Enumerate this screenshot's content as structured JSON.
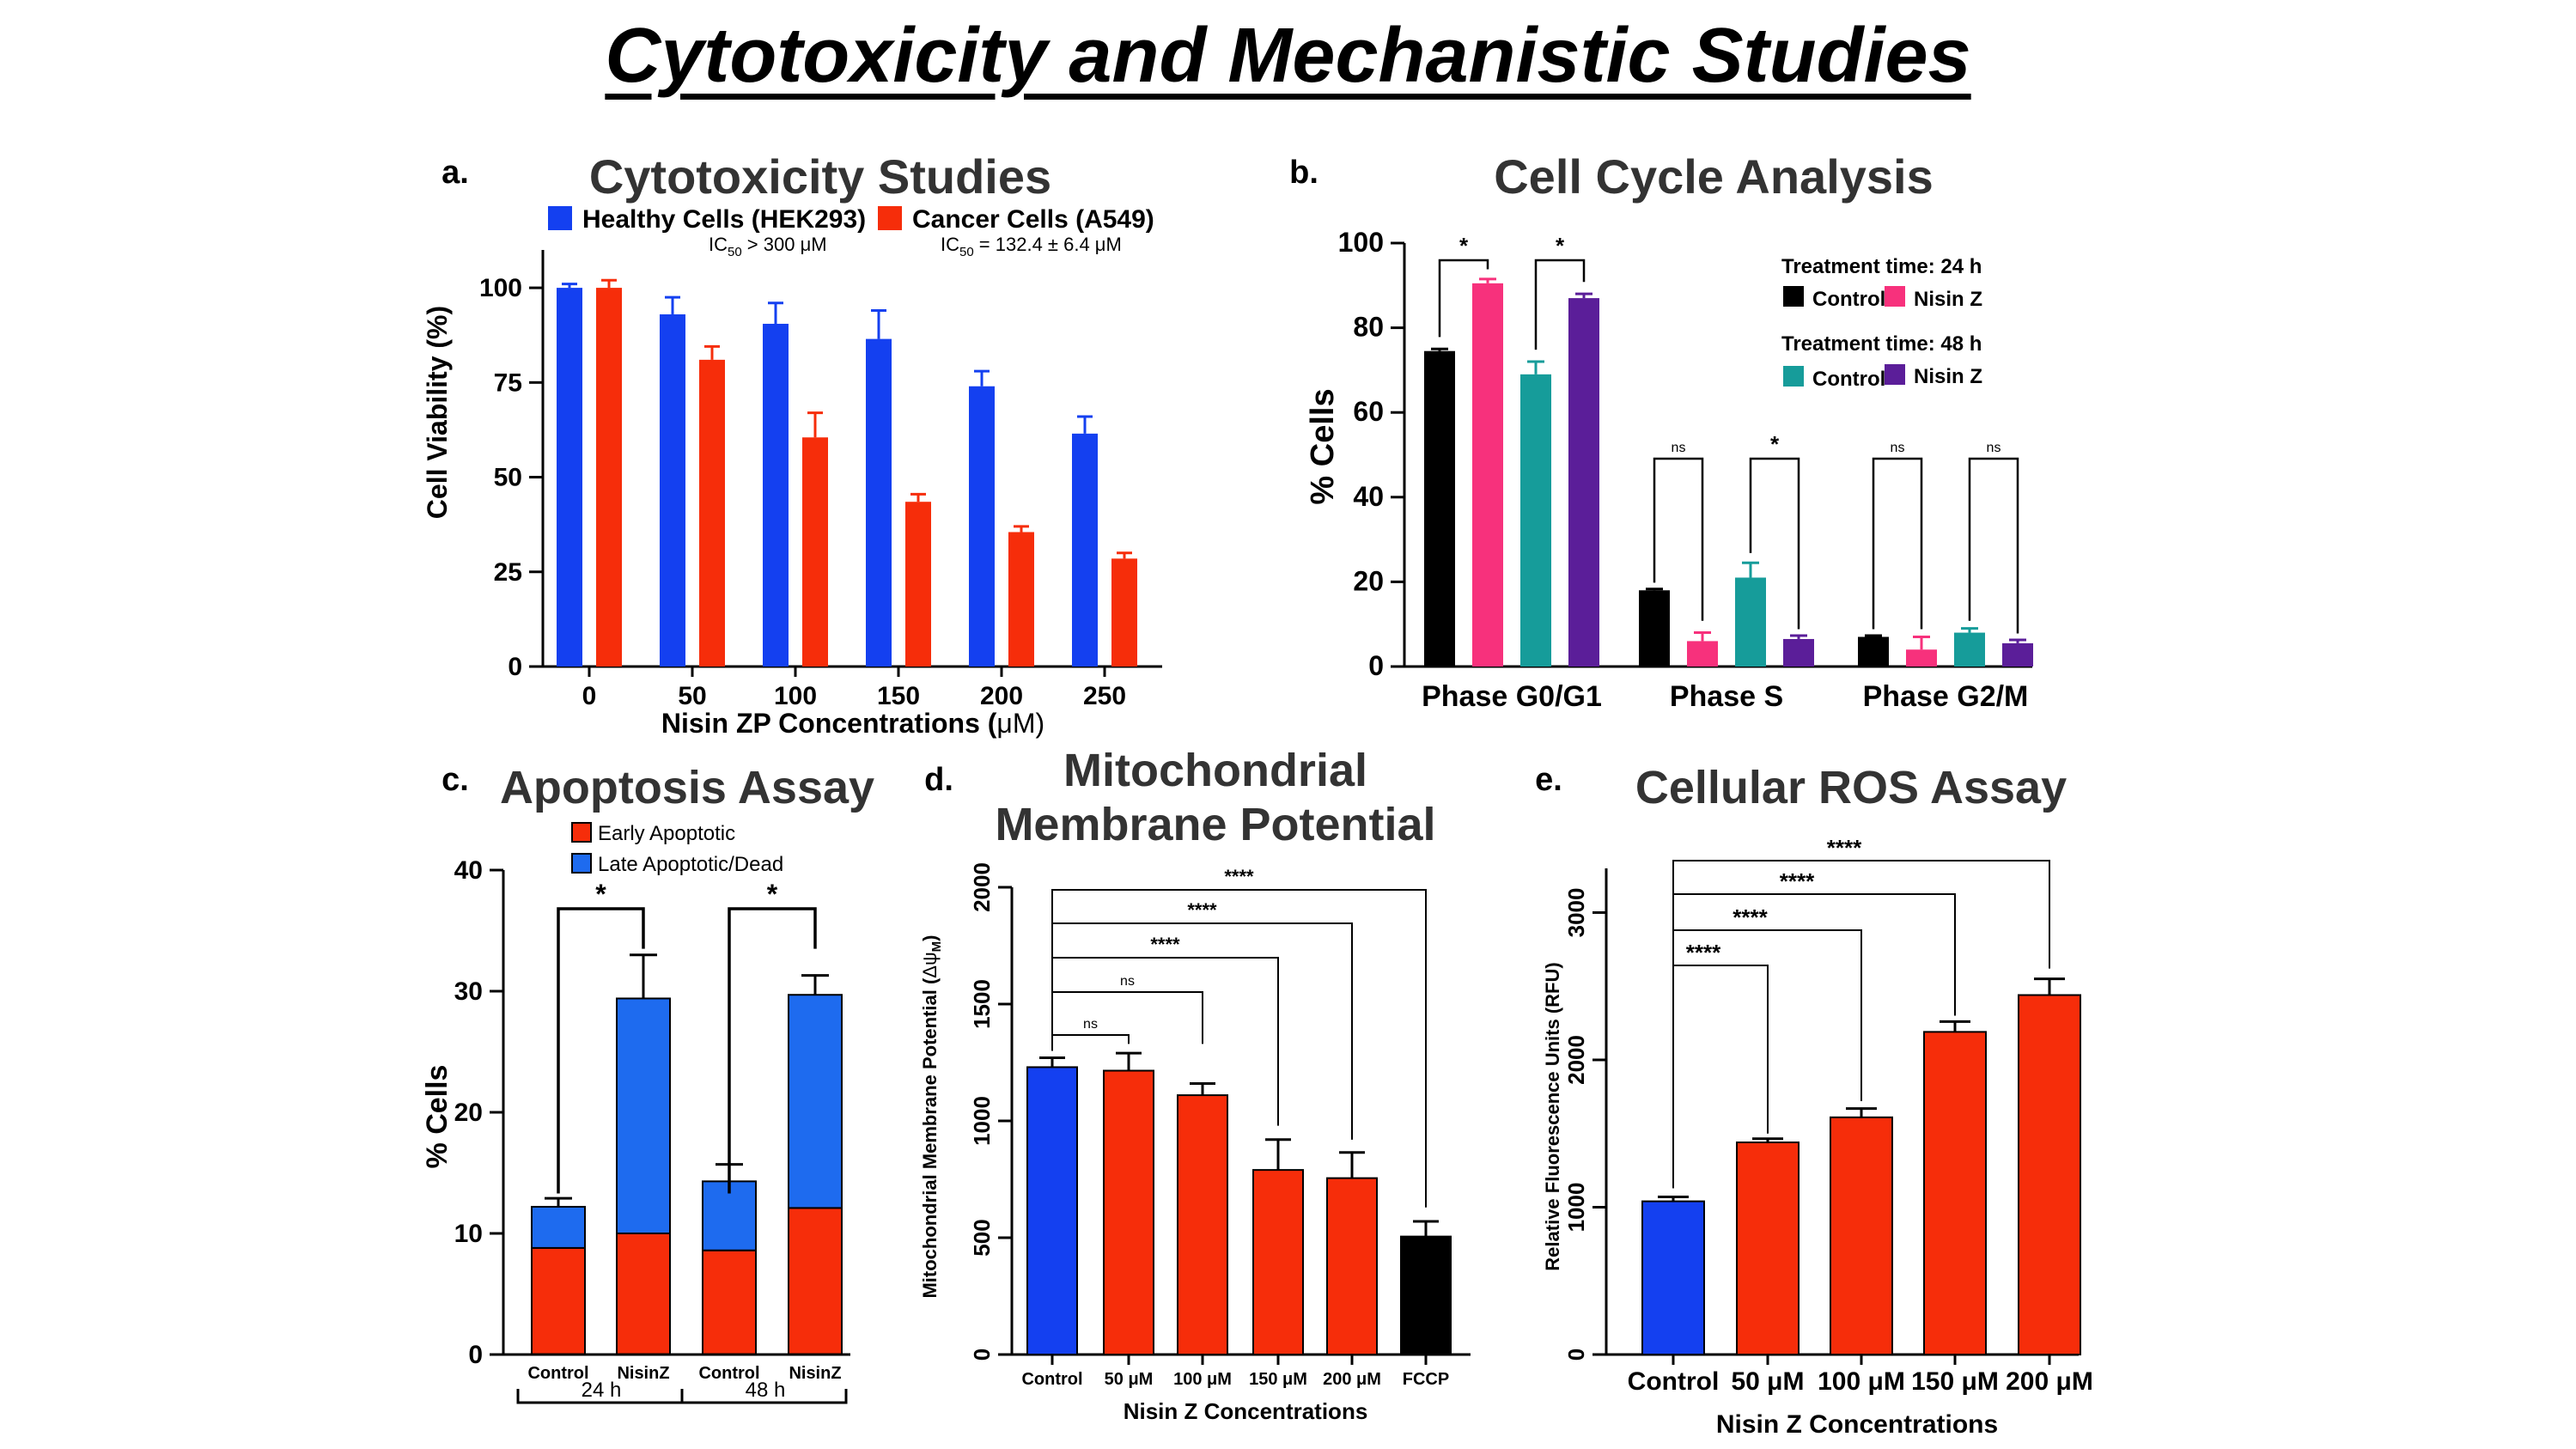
{
  "page_title": "Cytotoxicity and Mechanistic Studies",
  "colors": {
    "blue": "#1440F0",
    "red": "#F62D0A",
    "blue_light": "#1E6BEF",
    "black": "#000000",
    "pink": "#F7317C",
    "teal": "#169C9A",
    "purple": "#5B1E99"
  },
  "chart_data": [
    {
      "panel_label": "a.",
      "type": "bar",
      "title": "Cytotoxicity Studies",
      "xlabel_main": "Nisin ZP Concentrations (",
      "xlabel_mu": "μ",
      "xlabel_end": "M)",
      "ylabel": "Cell Viability (%)",
      "ylim": [
        0,
        110
      ],
      "yticks": [
        "0",
        "25",
        "50",
        "75",
        "100"
      ],
      "categories": [
        "0",
        "50",
        "100",
        "150",
        "200",
        "250"
      ],
      "series": [
        {
          "name": "Healthy Cells (HEK293)",
          "values": [
            100,
            93,
            90.5,
            86.5,
            74,
            61.5
          ],
          "errors": [
            1,
            4.5,
            5.5,
            7.5,
            4,
            4.5
          ]
        },
        {
          "name": "Cancer Cells (A549)",
          "values": [
            100,
            81,
            60.5,
            43.5,
            35.5,
            28.5
          ],
          "errors": [
            2,
            3.5,
            6.5,
            2,
            1.5,
            1.5
          ]
        }
      ],
      "ic50_notes": [
        {
          "prefix": "IC",
          "sub": "50",
          "rest": " > 300 μM"
        },
        {
          "prefix": "IC",
          "sub": "50",
          "rest": " = 132.4 ± 6.4 μM"
        }
      ]
    },
    {
      "panel_label": "b.",
      "type": "bar",
      "title": "Cell Cycle Analysis",
      "ylabel": "% Cells",
      "ylim": [
        0,
        100
      ],
      "yticks": [
        "0",
        "20",
        "40",
        "60",
        "80",
        "100"
      ],
      "categories": [
        "Phase G0/G1",
        "Phase S",
        "Phase G2/M"
      ],
      "legend_heading_24h": "Treatment time: 24 h",
      "legend_heading_48h": "Treatment time: 48 h",
      "series": [
        {
          "name": "Control",
          "time": "24 h",
          "values": [
            74.5,
            18,
            7
          ],
          "errors": [
            0.5,
            0.3,
            0.3
          ]
        },
        {
          "name": "Nisin Z",
          "time": "24 h",
          "values": [
            90.5,
            6,
            4
          ],
          "errors": [
            1,
            2,
            3
          ]
        },
        {
          "name": "Control",
          "time": "48 h",
          "values": [
            69,
            21,
            8
          ],
          "errors": [
            3,
            3.5,
            1
          ]
        },
        {
          "name": "Nisin Z",
          "time": "48 h",
          "values": [
            87,
            6.5,
            5.5
          ],
          "errors": [
            1,
            0.8,
            0.8
          ]
        }
      ],
      "significance": [
        "*",
        "*",
        "ns",
        "*",
        "ns",
        "ns"
      ]
    },
    {
      "panel_label": "c.",
      "type": "bar",
      "stacked": true,
      "title": "Apoptosis Assay",
      "ylabel": "% Cells",
      "ylim": [
        0,
        40
      ],
      "yticks": [
        "0",
        "10",
        "20",
        "30",
        "40"
      ],
      "categories": [
        "Control",
        "NisinZ",
        "Control",
        "NisinZ"
      ],
      "groups": [
        "24 h",
        "48 h"
      ],
      "series": [
        {
          "name": "Early Apoptotic",
          "values": [
            8.8,
            10,
            8.6,
            12.1
          ],
          "errors": [
            0.6,
            0.6,
            1.7,
            1.4
          ]
        },
        {
          "name": "Late Apoptotic/Dead",
          "values": [
            3.4,
            19.4,
            5.7,
            17.6
          ],
          "errors": [
            0.7,
            3.6,
            1.4,
            1.6
          ]
        }
      ],
      "significance": [
        "*",
        "*"
      ]
    },
    {
      "panel_label": "d.",
      "type": "bar",
      "title_line1": "Mitochondrial",
      "title_line2": "Membrane Potential",
      "xlabel": "Nisin Z Concentrations",
      "ylabel_main": "Mitochondrial Membrane Potential (",
      "ylabel_symbol": "Δψ",
      "ylabel_sub": "M",
      "ylabel_end": ")",
      "ylim": [
        0,
        2000
      ],
      "yticks": [
        "0",
        "500",
        "1000",
        "1500",
        "2000"
      ],
      "categories": [
        "Control",
        "50 μM",
        "100 μM",
        "150 μM",
        "200 μM",
        "FCCP"
      ],
      "values": [
        1230,
        1215,
        1110,
        790,
        755,
        505
      ],
      "errors": [
        40,
        75,
        50,
        130,
        110,
        65
      ],
      "bar_colors": [
        "blue",
        "red",
        "red",
        "red",
        "red",
        "black"
      ],
      "significance": [
        "ns",
        "ns",
        "****",
        "****",
        "****"
      ]
    },
    {
      "panel_label": "e.",
      "type": "bar",
      "title": "Cellular ROS Assay",
      "xlabel": "Nisin Z Concentrations",
      "ylabel": "Relative Fluorescence Units (RFU)",
      "ylim": [
        0,
        3300
      ],
      "yticks": [
        "0",
        "1000",
        "2000",
        "3000"
      ],
      "categories": [
        "Control",
        "50 μM",
        "100 μM",
        "150 μM",
        "200 μM"
      ],
      "values": [
        1040,
        1440,
        1610,
        2190,
        2440
      ],
      "errors": [
        30,
        25,
        60,
        70,
        110
      ],
      "bar_colors": [
        "blue",
        "red",
        "red",
        "red",
        "red"
      ],
      "significance": [
        "****",
        "****",
        "****",
        "****"
      ]
    }
  ]
}
